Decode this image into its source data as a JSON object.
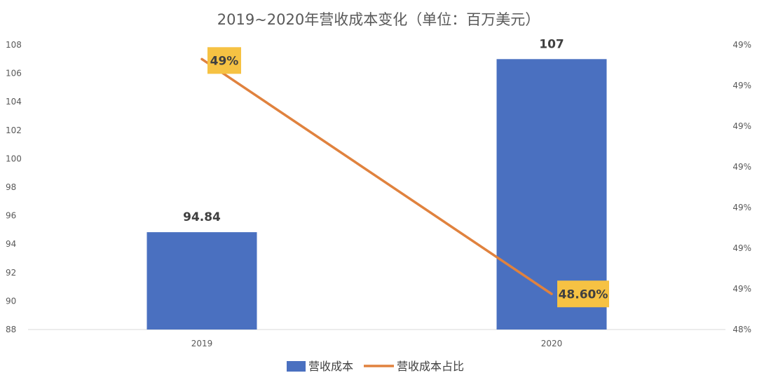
{
  "chart_data": {
    "type": "bar",
    "title": "2019~2020年营收成本变化（单位：百万美元）",
    "categories": [
      "2019",
      "2020"
    ],
    "series": [
      {
        "name": "营收成本",
        "type": "bar",
        "axis": "left",
        "values": [
          94.84,
          107
        ],
        "data_labels": [
          "94.84",
          "107"
        ]
      },
      {
        "name": "营收成本占比",
        "type": "line",
        "axis": "right",
        "values": [
          0.4893,
          0.486
        ],
        "data_labels": [
          "49%",
          "48.60%"
        ]
      }
    ],
    "y_left": {
      "ylim": [
        88,
        108
      ],
      "ticks": [
        "88",
        "90",
        "92",
        "94",
        "96",
        "98",
        "100",
        "102",
        "104",
        "106",
        "108"
      ]
    },
    "y_right": {
      "ylim": [
        0.4855,
        0.4895
      ],
      "ticks": [
        "48%",
        "49%",
        "49%",
        "49%",
        "49%",
        "49%",
        "49%",
        "49%"
      ]
    },
    "legend_position": "bottom",
    "grid": false,
    "colors": {
      "bar": "#4A70C0",
      "line": "#E0823E",
      "label_box": "#F6C243"
    }
  }
}
